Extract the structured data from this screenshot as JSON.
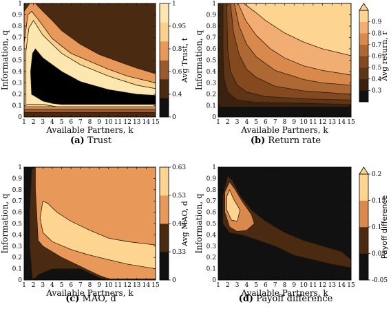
{
  "chart_data": [
    {
      "type": "heatmap",
      "caption_letter": "(a)",
      "caption_text": "Trust",
      "xlabel": "Available Partners, k",
      "ylabel": "Information, q",
      "colorbar_label": "Avg Trust, t",
      "x_ticks": [
        1,
        2,
        3,
        4,
        5,
        6,
        7,
        8,
        9,
        10,
        11,
        12,
        13,
        14,
        15
      ],
      "y_ticks": [
        0,
        0.1,
        0.2,
        0.3,
        0.4,
        0.5,
        0.6,
        0.7,
        0.8,
        0.9,
        1
      ],
      "xlim": [
        1,
        15
      ],
      "ylim": [
        0,
        1
      ],
      "colorbar_ticks": [
        "0",
        "0.4",
        "0.6",
        "0.8",
        "0.95",
        "1"
      ],
      "colorbar_extend_top": false,
      "colors": [
        "#111111",
        "#4a2b12",
        "#9a5a2e",
        "#e8995a",
        "#fbd08c",
        "#fde7b0"
      ],
      "contour_polygons": [
        {
          "level": 1,
          "points": [
            [
              1,
              0
            ],
            [
              15,
              0
            ],
            [
              15,
              1
            ],
            [
              1,
              1
            ]
          ]
        },
        {
          "level": 2,
          "points": [
            [
              1,
              0.04
            ],
            [
              1,
              0.13
            ],
            [
              2,
              0.12
            ],
            [
              4,
              0.11
            ],
            [
              15,
              0.095
            ],
            [
              15,
              0.04
            ]
          ]
        },
        {
          "level": 3,
          "points": [
            [
              1,
              0.07
            ],
            [
              1,
              0.93
            ],
            [
              1.6,
              1
            ],
            [
              2.2,
              1
            ],
            [
              3,
              0.93
            ],
            [
              4,
              0.85
            ],
            [
              5,
              0.76
            ],
            [
              7,
              0.64
            ],
            [
              9,
              0.55
            ],
            [
              11,
              0.49
            ],
            [
              13,
              0.43
            ],
            [
              15,
              0.38
            ],
            [
              15,
              0.07
            ]
          ]
        },
        {
          "level": 4,
          "points": [
            [
              1,
              0.09
            ],
            [
              1,
              0.65
            ],
            [
              1.4,
              0.9
            ],
            [
              1.8,
              0.93
            ],
            [
              2.5,
              0.86
            ],
            [
              4,
              0.69
            ],
            [
              6,
              0.56
            ],
            [
              8,
              0.49
            ],
            [
              10,
              0.42
            ],
            [
              12,
              0.36
            ],
            [
              14,
              0.32
            ],
            [
              15,
              0.3
            ],
            [
              15,
              0.09
            ]
          ]
        },
        {
          "level": 5,
          "points": [
            [
              1.2,
              0.11
            ],
            [
              1.2,
              0.58
            ],
            [
              1.5,
              0.78
            ],
            [
              2,
              0.85
            ],
            [
              3,
              0.72
            ],
            [
              5,
              0.56
            ],
            [
              7,
              0.46
            ],
            [
              10,
              0.36
            ],
            [
              13,
              0.28
            ],
            [
              15,
              0.25
            ],
            [
              15,
              0.09
            ],
            [
              4.5,
              0.09
            ],
            [
              3,
              0.11
            ]
          ]
        },
        {
          "level": 6,
          "points": [
            [
              1.8,
              0.2
            ],
            [
              1.7,
              0.4
            ],
            [
              1.9,
              0.56
            ],
            [
              2.2,
              0.6
            ],
            [
              3,
              0.52
            ],
            [
              5,
              0.4
            ],
            [
              7,
              0.31
            ],
            [
              10,
              0.24
            ],
            [
              13,
              0.2
            ],
            [
              15,
              0.19
            ],
            [
              15,
              0.11
            ],
            [
              5,
              0.11
            ],
            [
              4,
              0.12
            ],
            [
              3,
              0.14
            ],
            [
              2.4,
              0.17
            ]
          ]
        }
      ]
    },
    {
      "type": "heatmap",
      "caption_letter": "(b)",
      "caption_text": "Return rate",
      "xlabel": "Available Partners, k",
      "ylabel": "Information, q",
      "colorbar_label": "Avg return, r",
      "x_ticks": [
        1,
        2,
        3,
        4,
        5,
        6,
        7,
        8,
        9,
        10,
        11,
        12,
        13,
        14,
        15
      ],
      "y_ticks": [
        0,
        0.1,
        0.2,
        0.3,
        0.4,
        0.5,
        0.6,
        0.7,
        0.8,
        0.9,
        1
      ],
      "xlim": [
        1,
        15
      ],
      "ylim": [
        0,
        1
      ],
      "colorbar_ticks": [
        "0.3",
        "0.4",
        "0.5",
        "0.6",
        "0.7",
        "0.8",
        "0.9"
      ],
      "colorbar_extend_top": true,
      "colors": [
        "#111111",
        "#3a220e",
        "#5e3515",
        "#84491f",
        "#ae6834",
        "#d9894c",
        "#f2ae72",
        "#fdd490"
      ],
      "contour_polygons": [
        {
          "level": 0,
          "points": [
            [
              1,
              0
            ],
            [
              15,
              0
            ],
            [
              15,
              1
            ],
            [
              1,
              1
            ]
          ]
        },
        {
          "level": 1,
          "points": [
            [
              1,
              0.09
            ],
            [
              1,
              1
            ],
            [
              15,
              1
            ],
            [
              15,
              0.09
            ]
          ]
        },
        {
          "level": 2,
          "points": [
            [
              1.5,
              1
            ],
            [
              1.5,
              0.6
            ],
            [
              1.6,
              0.35
            ],
            [
              2,
              0.22
            ],
            [
              3,
              0.15
            ],
            [
              5,
              0.13
            ],
            [
              10,
              0.12
            ],
            [
              15,
              0.11
            ],
            [
              15,
              1
            ]
          ]
        },
        {
          "level": 3,
          "points": [
            [
              1.9,
              1
            ],
            [
              2,
              0.6
            ],
            [
              2.3,
              0.4
            ],
            [
              3,
              0.28
            ],
            [
              4,
              0.22
            ],
            [
              6,
              0.18
            ],
            [
              10,
              0.16
            ],
            [
              15,
              0.15
            ],
            [
              15,
              1
            ]
          ]
        },
        {
          "level": 4,
          "points": [
            [
              2.3,
              1
            ],
            [
              2.6,
              0.75
            ],
            [
              3.2,
              0.55
            ],
            [
              4,
              0.42
            ],
            [
              5,
              0.35
            ],
            [
              7,
              0.27
            ],
            [
              10,
              0.23
            ],
            [
              15,
              0.2
            ],
            [
              15,
              1
            ]
          ]
        },
        {
          "level": 5,
          "points": [
            [
              2.7,
              1
            ],
            [
              3.2,
              0.8
            ],
            [
              4,
              0.64
            ],
            [
              5,
              0.53
            ],
            [
              7,
              0.41
            ],
            [
              10,
              0.33
            ],
            [
              12,
              0.3
            ],
            [
              15,
              0.28
            ],
            [
              15,
              1
            ]
          ]
        },
        {
          "level": 6,
          "points": [
            [
              3.1,
              1
            ],
            [
              3.9,
              0.85
            ],
            [
              5,
              0.72
            ],
            [
              6.5,
              0.6
            ],
            [
              8,
              0.52
            ],
            [
              10,
              0.45
            ],
            [
              12,
              0.41
            ],
            [
              15,
              0.37
            ],
            [
              15,
              1
            ]
          ]
        },
        {
          "level": 7,
          "points": [
            [
              3.7,
              1
            ],
            [
              4.8,
              0.93
            ],
            [
              6,
              0.85
            ],
            [
              8,
              0.74
            ],
            [
              10,
              0.66
            ],
            [
              12,
              0.6
            ],
            [
              15,
              0.54
            ],
            [
              15,
              1
            ]
          ]
        }
      ]
    },
    {
      "type": "heatmap",
      "caption_letter": "(c)",
      "caption_text": "MAO, d",
      "xlabel": "Available Partners, k",
      "ylabel": "Information, q",
      "colorbar_label": "Avg MAO, d",
      "x_ticks": [
        1,
        2,
        3,
        4,
        5,
        6,
        7,
        8,
        9,
        10,
        11,
        12,
        13,
        14,
        15
      ],
      "y_ticks": [
        0,
        0.1,
        0.2,
        0.3,
        0.4,
        0.5,
        0.6,
        0.7,
        0.8,
        0.9,
        1
      ],
      "xlim": [
        1,
        15
      ],
      "ylim": [
        0,
        1
      ],
      "colorbar_ticks": [
        "0",
        "0.33",
        "0.43",
        "0.53",
        "0.63"
      ],
      "colorbar_extend_top": false,
      "colors": [
        "#111111",
        "#4a2b12",
        "#e8995a",
        "#fdd490"
      ],
      "contour_polygons": [
        {
          "level": 0,
          "points": [
            [
              1,
              0
            ],
            [
              15,
              0
            ],
            [
              15,
              1
            ],
            [
              1,
              1
            ]
          ]
        },
        {
          "level": 1,
          "points": [
            [
              1.9,
              0
            ],
            [
              1.6,
              0.3
            ],
            [
              1.6,
              0.6
            ],
            [
              1.8,
              0.95
            ],
            [
              1.9,
              1
            ],
            [
              15,
              1
            ],
            [
              15,
              0
            ],
            [
              10,
              0
            ],
            [
              9,
              0.02
            ],
            [
              8,
              0.06
            ],
            [
              7,
              0.1
            ],
            [
              5.5,
              0.1
            ],
            [
              4,
              0.1
            ],
            [
              2.6,
              0.05
            ]
          ]
        },
        {
          "level": 2,
          "points": [
            [
              2.2,
              1
            ],
            [
              2.2,
              0.8
            ],
            [
              2.5,
              0.35
            ],
            [
              3,
              0.3
            ],
            [
              5,
              0.2
            ],
            [
              6.5,
              0.14
            ],
            [
              8,
              0.08
            ],
            [
              9,
              0.04
            ],
            [
              10,
              0.01
            ],
            [
              15,
              0.01
            ],
            [
              15,
              1
            ]
          ]
        },
        {
          "level": 3,
          "points": [
            [
              3,
              0.7
            ],
            [
              3.5,
              0.68
            ],
            [
              4.5,
              0.6
            ],
            [
              6,
              0.52
            ],
            [
              8,
              0.44
            ],
            [
              10,
              0.37
            ],
            [
              12,
              0.34
            ],
            [
              14,
              0.32
            ],
            [
              15,
              0.31
            ],
            [
              15,
              0.1
            ],
            [
              12,
              0.14
            ],
            [
              10,
              0.18
            ],
            [
              8,
              0.22
            ],
            [
              6,
              0.27
            ],
            [
              4,
              0.34
            ],
            [
              3,
              0.42
            ],
            [
              2.7,
              0.55
            ]
          ]
        }
      ]
    },
    {
      "type": "heatmap",
      "caption_letter": "(d)",
      "caption_text": "Payoff difference",
      "xlabel": "Available Partners, k",
      "ylabel": "Information, q",
      "colorbar_label": "Payoff difference",
      "x_ticks": [
        1,
        2,
        3,
        4,
        5,
        6,
        7,
        8,
        9,
        10,
        11,
        12,
        13,
        14,
        15
      ],
      "y_ticks": [
        0,
        0.1,
        0.2,
        0.3,
        0.4,
        0.5,
        0.6,
        0.7,
        0.8,
        0.9,
        1
      ],
      "xlim": [
        1,
        15
      ],
      "ylim": [
        0,
        1
      ],
      "colorbar_ticks": [
        "-0.05",
        "0.05",
        "0.1",
        "0.15",
        "0.2"
      ],
      "colorbar_extend_top": true,
      "colors": [
        "#111111",
        "#4a2b12",
        "#d9894c",
        "#fdd490"
      ],
      "contour_polygons": [
        {
          "level": 0,
          "points": [
            [
              1,
              0
            ],
            [
              15,
              0
            ],
            [
              15,
              1
            ],
            [
              1,
              1
            ]
          ]
        },
        {
          "level": 1,
          "points": [
            [
              1.5,
              0.5
            ],
            [
              1.5,
              0.75
            ],
            [
              2,
              0.92
            ],
            [
              2.5,
              0.88
            ],
            [
              3.3,
              0.75
            ],
            [
              4.5,
              0.62
            ],
            [
              6,
              0.52
            ],
            [
              8,
              0.42
            ],
            [
              10,
              0.35
            ],
            [
              12,
              0.3
            ],
            [
              14,
              0.25
            ],
            [
              15,
              0.18
            ],
            [
              15,
              0.11
            ],
            [
              13,
              0.14
            ],
            [
              11,
              0.18
            ],
            [
              9,
              0.22
            ],
            [
              7,
              0.3
            ],
            [
              5,
              0.36
            ],
            [
              3.5,
              0.4
            ],
            [
              2.2,
              0.42
            ]
          ]
        },
        {
          "level": 2,
          "points": [
            [
              1.7,
              0.6
            ],
            [
              1.7,
              0.78
            ],
            [
              2.2,
              0.87
            ],
            [
              2.8,
              0.8
            ],
            [
              3.5,
              0.7
            ],
            [
              4.5,
              0.58
            ],
            [
              4.8,
              0.5
            ],
            [
              4,
              0.44
            ],
            [
              3,
              0.43
            ],
            [
              2.2,
              0.47
            ]
          ]
        },
        {
          "level": 3,
          "points": [
            [
              1.9,
              0.62
            ],
            [
              1.9,
              0.74
            ],
            [
              2.2,
              0.8
            ],
            [
              2.6,
              0.72
            ],
            [
              3.3,
              0.62
            ],
            [
              3,
              0.52
            ],
            [
              2.4,
              0.53
            ]
          ]
        }
      ]
    }
  ]
}
